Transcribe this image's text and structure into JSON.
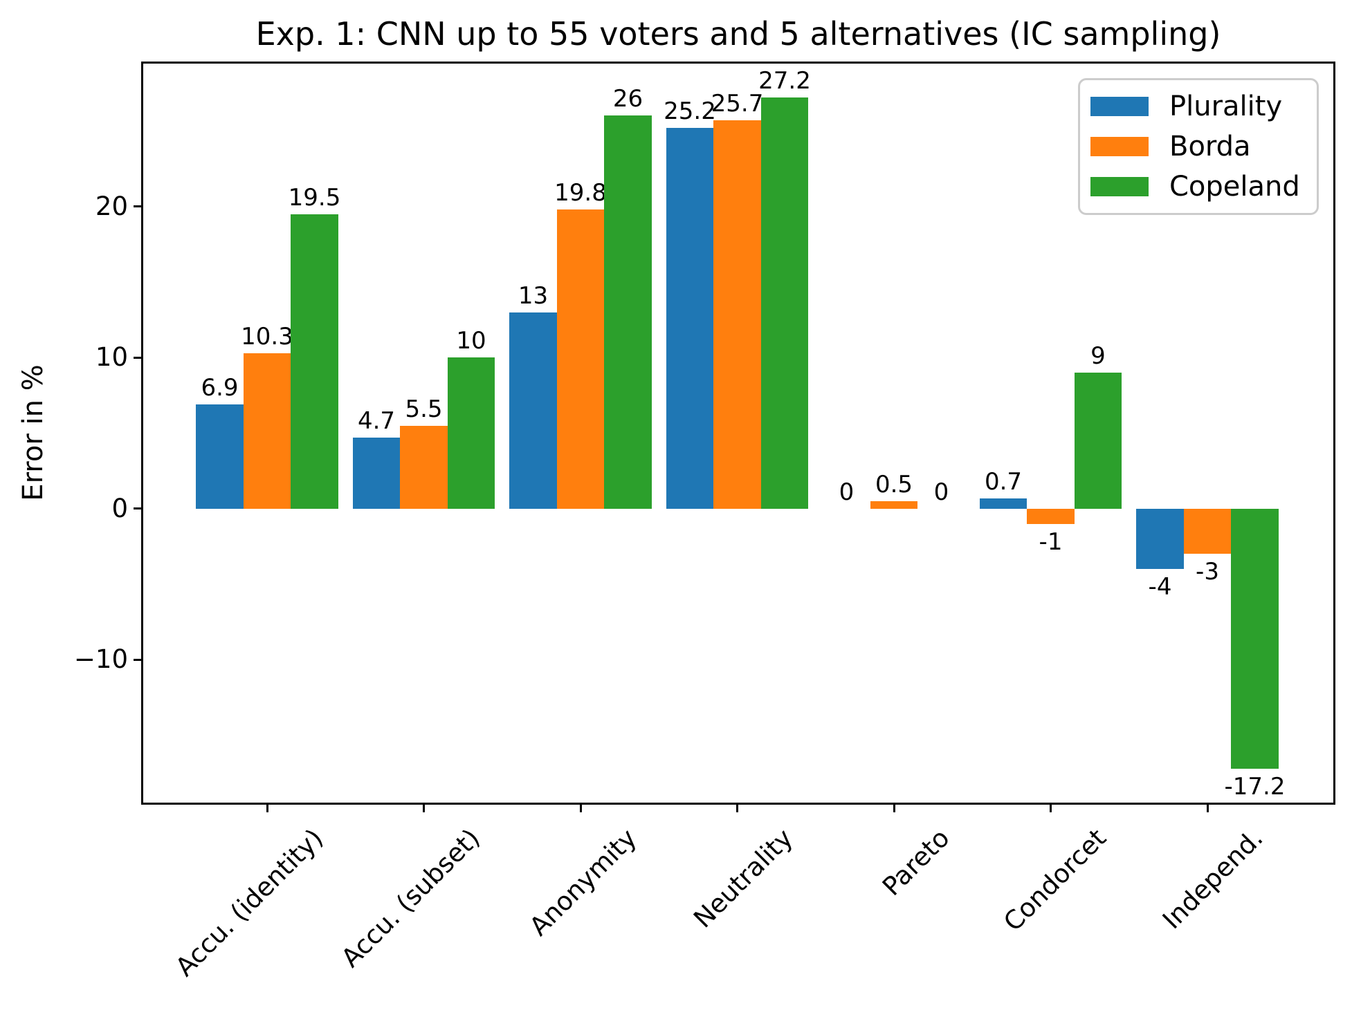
{
  "chart_data": {
    "type": "bar",
    "title": "Exp. 1: CNN up to 55 voters and 5 alternatives (IC sampling)",
    "xlabel": "",
    "ylabel": "Error in %",
    "categories": [
      "Accu. (identity)",
      "Accu. (subset)",
      "Anonymity",
      "Neutrality",
      "Pareto",
      "Condorcet",
      "Independ."
    ],
    "series": [
      {
        "name": "Plurality",
        "color": "#1f77b4",
        "values": [
          6.9,
          4.7,
          13,
          25.2,
          0,
          0.7,
          -4
        ],
        "labels": [
          "6.9",
          "4.7",
          "13",
          "25.2",
          "0",
          "0.7",
          "-4"
        ]
      },
      {
        "name": "Borda",
        "color": "#ff7f0e",
        "values": [
          10.3,
          5.5,
          19.8,
          25.7,
          0.5,
          -1,
          -3
        ],
        "labels": [
          "10.3",
          "5.5",
          "19.8",
          "25.7",
          "0.5",
          "-1",
          "-3"
        ]
      },
      {
        "name": "Copeland",
        "color": "#2ca02c",
        "values": [
          19.5,
          10,
          26,
          27.2,
          0,
          9,
          -17.2
        ],
        "labels": [
          "19.5",
          "10",
          "26",
          "27.2",
          "0",
          "9",
          "-17.2"
        ]
      }
    ],
    "yticks": {
      "values": [
        20,
        10,
        0,
        -10
      ],
      "labels": [
        "20",
        "10",
        "0",
        "−10"
      ]
    },
    "ylim": [
      -19.45,
      29.45
    ],
    "grid": false,
    "bar_value_labels": true,
    "legend": {
      "position": "upper right",
      "entries": [
        "Plurality",
        "Borda",
        "Copeland"
      ]
    }
  }
}
